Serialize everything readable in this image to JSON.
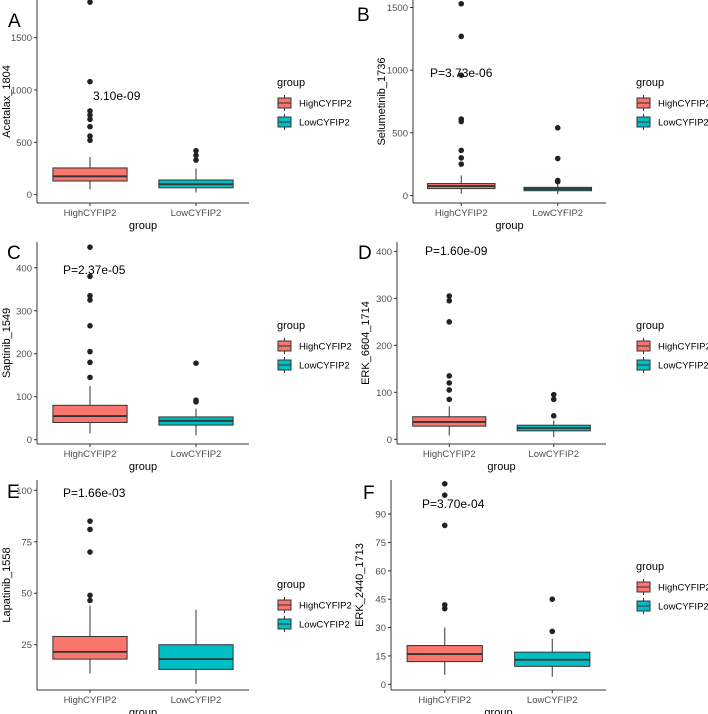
{
  "colors": {
    "high": "#F8766D",
    "low": "#00BFC4",
    "outline": "#333333",
    "axis": "#333333"
  },
  "legend": {
    "title": "group",
    "labels": [
      "HighCYFIP2",
      "LowCYFIP2"
    ]
  },
  "chart_data": [
    {
      "type": "boxplot",
      "panel": "A",
      "ylabel": "Acetalax_1804",
      "xlabel": "group",
      "categories": [
        "HighCYFIP2",
        "LowCYFIP2"
      ],
      "ylim": [
        -80,
        1860
      ],
      "yticks": [
        0,
        500,
        1000,
        1500
      ],
      "pvalue": "3.10e-09",
      "boxes": [
        {
          "group": "HighCYFIP2",
          "q1": 130,
          "median": 175,
          "q3": 255,
          "wlow": 50,
          "whigh": 360,
          "outliers": [
            520,
            560,
            650,
            720,
            760,
            800,
            1080,
            1840
          ]
        },
        {
          "group": "LowCYFIP2",
          "q1": 65,
          "median": 100,
          "q3": 140,
          "wlow": 20,
          "whigh": 250,
          "outliers": [
            330,
            375,
            420
          ]
        }
      ]
    },
    {
      "type": "boxplot",
      "panel": "B",
      "ylabel": "Selumetinib_1736",
      "xlabel": "group",
      "categories": [
        "HighCYFIP2",
        "LowCYFIP2"
      ],
      "ylim": [
        -60,
        1560
      ],
      "yticks": [
        0,
        500,
        1000,
        1500
      ],
      "pvalue": "P=3.73e-06",
      "boxes": [
        {
          "group": "HighCYFIP2",
          "q1": 55,
          "median": 75,
          "q3": 95,
          "wlow": 15,
          "whigh": 160,
          "outliers": [
            250,
            300,
            360,
            590,
            610,
            960,
            1270,
            1530
          ]
        },
        {
          "group": "LowCYFIP2",
          "q1": 38,
          "median": 52,
          "q3": 65,
          "wlow": 10,
          "whigh": 100,
          "outliers": [
            110,
            120,
            295,
            540
          ]
        }
      ]
    },
    {
      "type": "boxplot",
      "panel": "C",
      "ylabel": "Saptinib_1549",
      "xlabel": "group",
      "categories": [
        "HighCYFIP2",
        "LowCYFIP2"
      ],
      "ylim": [
        -10,
        460
      ],
      "yticks": [
        0,
        100,
        200,
        300,
        400
      ],
      "pvalue": "P=2.37e-05",
      "boxes": [
        {
          "group": "HighCYFIP2",
          "q1": 40,
          "median": 55,
          "q3": 80,
          "wlow": 15,
          "whigh": 125,
          "outliers": [
            145,
            180,
            205,
            265,
            325,
            335,
            380,
            448
          ]
        },
        {
          "group": "LowCYFIP2",
          "q1": 34,
          "median": 44,
          "q3": 53,
          "wlow": 10,
          "whigh": 72,
          "outliers": [
            88,
            92,
            178
          ]
        }
      ]
    },
    {
      "type": "boxplot",
      "panel": "D",
      "ylabel": "ERK_6604_1714",
      "xlabel": "group",
      "categories": [
        "HighCYFIP2",
        "LowCYFIP2"
      ],
      "ylim": [
        -10,
        420
      ],
      "yticks": [
        0,
        100,
        200,
        300,
        400
      ],
      "pvalue": "P=1.60e-09",
      "boxes": [
        {
          "group": "HighCYFIP2",
          "q1": 28,
          "median": 37,
          "q3": 48,
          "wlow": 8,
          "whigh": 70,
          "outliers": [
            85,
            105,
            120,
            135,
            250,
            295,
            305
          ]
        },
        {
          "group": "LowCYFIP2",
          "q1": 18,
          "median": 24,
          "q3": 30,
          "wlow": 5,
          "whigh": 40,
          "outliers": [
            50,
            85,
            95
          ]
        }
      ]
    },
    {
      "type": "boxplot",
      "panel": "E",
      "ylabel": "Lapatinib_1558",
      "xlabel": "group",
      "categories": [
        "HighCYFIP2",
        "LowCYFIP2"
      ],
      "ylim": [
        3,
        105
      ],
      "yticks": [
        25,
        50,
        75,
        100
      ],
      "pvalue": "P=1.66e-03",
      "boxes": [
        {
          "group": "HighCYFIP2",
          "q1": 18,
          "median": 21.5,
          "q3": 29,
          "wlow": 11,
          "whigh": 44,
          "outliers": [
            46.5,
            49,
            70,
            81,
            85
          ]
        },
        {
          "group": "LowCYFIP2",
          "q1": 13,
          "median": 18,
          "q3": 25,
          "wlow": 6,
          "whigh": 42,
          "outliers": []
        }
      ]
    },
    {
      "type": "boxplot",
      "panel": "F",
      "ylabel": "ERK_2440_1713",
      "xlabel": "group",
      "categories": [
        "HighCYFIP2",
        "LowCYFIP2"
      ],
      "ylim": [
        -3,
        108
      ],
      "yticks": [
        0,
        15,
        30,
        45,
        60,
        75,
        90
      ],
      "pvalue": "P=3.70e-04",
      "boxes": [
        {
          "group": "HighCYFIP2",
          "q1": 12,
          "median": 16,
          "q3": 20.5,
          "wlow": 5,
          "whigh": 30,
          "outliers": [
            40,
            42,
            84,
            100,
            106
          ]
        },
        {
          "group": "LowCYFIP2",
          "q1": 9.5,
          "median": 13,
          "q3": 17,
          "wlow": 4,
          "whigh": 24,
          "outliers": [
            28,
            45
          ]
        }
      ]
    }
  ]
}
